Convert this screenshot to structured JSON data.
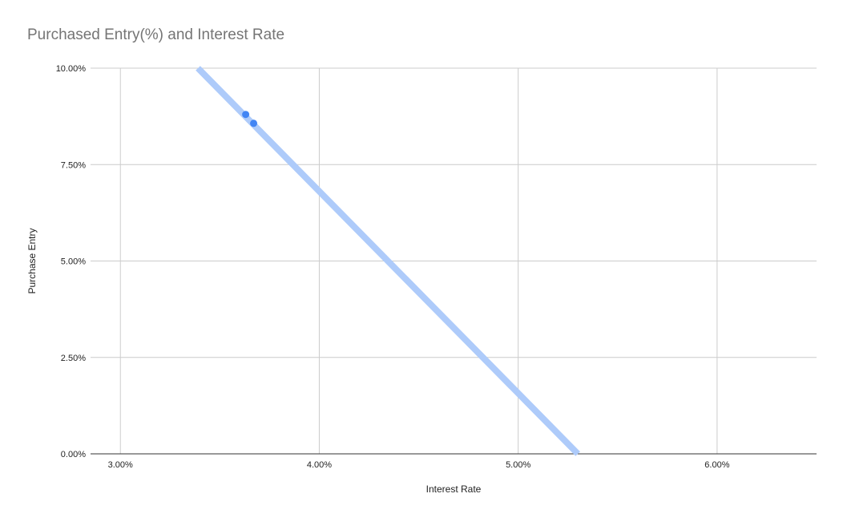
{
  "chart_data": {
    "type": "scatter",
    "title": "Purchased Entry(%) and Interest Rate",
    "xlabel": "Interest Rate",
    "ylabel": "Purchase Entry",
    "xlim": [
      2.85,
      6.5
    ],
    "ylim": [
      0,
      10
    ],
    "x_ticks": [
      3,
      4,
      5,
      6
    ],
    "x_tick_labels": [
      "3.00%",
      "4.00%",
      "5.00%",
      "6.00%"
    ],
    "y_ticks": [
      0,
      2.5,
      5,
      7.5,
      10
    ],
    "y_tick_labels": [
      "0.00%",
      "2.50%",
      "5.00%",
      "7.50%",
      "10.00%"
    ],
    "grid": true,
    "series": [
      {
        "points": [
          {
            "x": 3.63,
            "y": 8.8
          },
          {
            "x": 3.67,
            "y": 8.57
          }
        ]
      }
    ],
    "trendline": {
      "type": "linear",
      "points": [
        {
          "x": 3.39,
          "y": 10
        },
        {
          "x": 5.3,
          "y": 0
        }
      ]
    },
    "colors": {
      "point": "#4285f4",
      "trendline": "#aecbfa",
      "grid": "#cccccc",
      "axis": "#333333",
      "title": "#757575"
    }
  }
}
